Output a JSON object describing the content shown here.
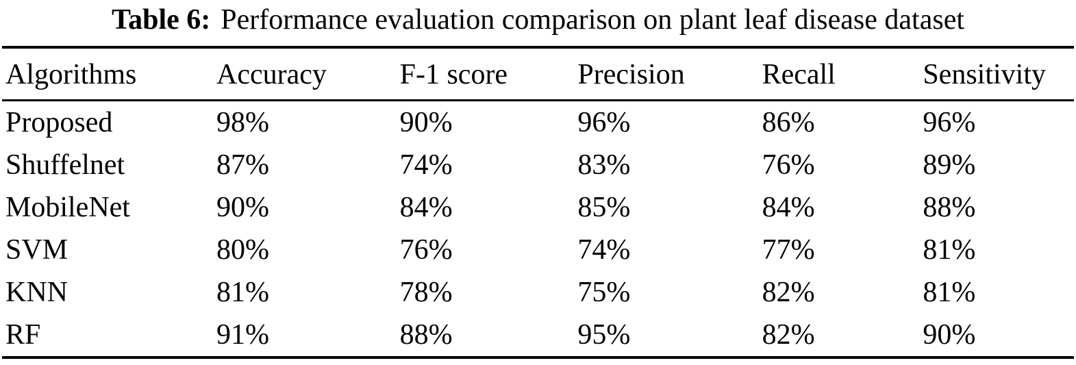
{
  "caption": {
    "label": "Table 6:",
    "text": "Performance evaluation comparison on plant leaf disease dataset"
  },
  "table": {
    "columns": [
      "Algorithms",
      "Accuracy",
      "F-1 score",
      "Precision",
      "Recall",
      "Sensitivity"
    ],
    "rows": [
      [
        "Proposed",
        "98%",
        "90%",
        "96%",
        "86%",
        "96%"
      ],
      [
        "Shuffelnet",
        "87%",
        "74%",
        "83%",
        "76%",
        "89%"
      ],
      [
        "MobileNet",
        "90%",
        "84%",
        "85%",
        "84%",
        "88%"
      ],
      [
        "SVM",
        "80%",
        "76%",
        "74%",
        "77%",
        "81%"
      ],
      [
        "KNN",
        "81%",
        "78%",
        "75%",
        "82%",
        "81%"
      ],
      [
        "RF",
        "91%",
        "88%",
        "95%",
        "82%",
        "90%"
      ]
    ]
  },
  "chart_data": {
    "type": "table",
    "title": "Table 6: Performance evaluation comparison on plant leaf disease dataset",
    "columns": [
      "Algorithms",
      "Accuracy",
      "F-1 score",
      "Precision",
      "Recall",
      "Sensitivity"
    ],
    "rows": [
      {
        "algorithm": "Proposed",
        "accuracy": 98,
        "f1_score": 90,
        "precision": 96,
        "recall": 86,
        "sensitivity": 96
      },
      {
        "algorithm": "Shuffelnet",
        "accuracy": 87,
        "f1_score": 74,
        "precision": 83,
        "recall": 76,
        "sensitivity": 89
      },
      {
        "algorithm": "MobileNet",
        "accuracy": 90,
        "f1_score": 84,
        "precision": 85,
        "recall": 84,
        "sensitivity": 88
      },
      {
        "algorithm": "SVM",
        "accuracy": 80,
        "f1_score": 76,
        "precision": 74,
        "recall": 77,
        "sensitivity": 81
      },
      {
        "algorithm": "KNN",
        "accuracy": 81,
        "f1_score": 78,
        "precision": 75,
        "recall": 82,
        "sensitivity": 81
      },
      {
        "algorithm": "RF",
        "accuracy": 91,
        "f1_score": 88,
        "precision": 95,
        "recall": 82,
        "sensitivity": 90
      }
    ],
    "unit": "%"
  },
  "colors": {
    "background": "#ffffff",
    "text": "#000000",
    "rule": "#000000"
  }
}
